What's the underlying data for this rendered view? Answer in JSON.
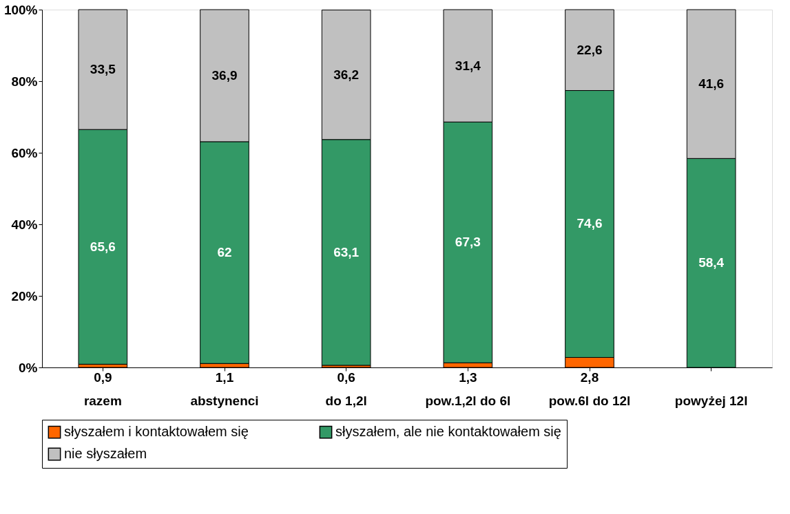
{
  "chart_data": {
    "type": "bar",
    "stacked": true,
    "grid": false,
    "legend": "bottom",
    "categories": [
      "razem",
      "abstynenci",
      "do 1,2l",
      "pow.1,2l do 6l",
      "pow.6l do 12l",
      "powyżej 12l"
    ],
    "ylim": [
      0,
      100
    ],
    "yticks": [
      {
        "value": 0,
        "label": "0%"
      },
      {
        "value": 20,
        "label": "20%"
      },
      {
        "value": 40,
        "label": "40%"
      },
      {
        "value": 60,
        "label": "60%"
      },
      {
        "value": 80,
        "label": "80%"
      },
      {
        "value": 100,
        "label": "100%"
      }
    ],
    "series": [
      {
        "name": "słyszałem i kontaktowałem się",
        "color": "#ff6600",
        "values": [
          0.9,
          1.1,
          0.6,
          1.3,
          2.8,
          null
        ],
        "value_labels": [
          "0,9",
          "1,1",
          "0,6",
          "1,3",
          "2,8",
          null
        ]
      },
      {
        "name": "słyszałem, ale nie kontaktowałem się",
        "color": "#339966",
        "values": [
          65.6,
          62,
          63.1,
          67.3,
          74.6,
          58.4
        ],
        "value_labels": [
          "65,6",
          "62",
          "63,1",
          "67,3",
          "74,6",
          "58,4"
        ]
      },
      {
        "name": "nie słyszałem",
        "color": "#c0c0c0",
        "values": [
          33.5,
          36.9,
          36.2,
          31.4,
          22.6,
          41.6
        ],
        "value_labels": [
          "33,5",
          "36,9",
          "36,2",
          "31,4",
          "22,6",
          "41,6"
        ]
      }
    ]
  }
}
